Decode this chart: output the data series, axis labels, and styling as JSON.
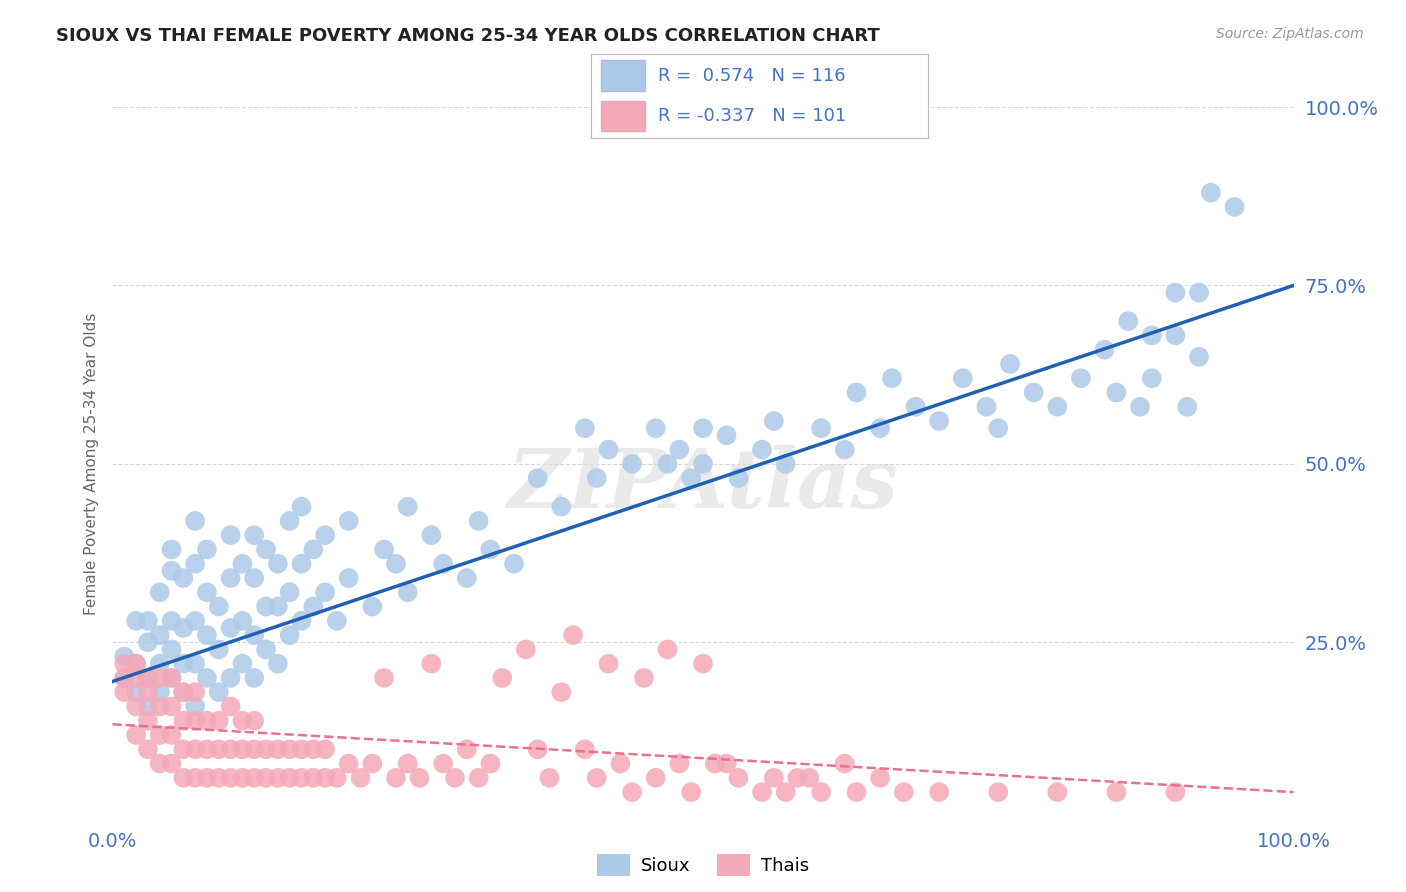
{
  "title": "SIOUX VS THAI FEMALE POVERTY AMONG 25-34 YEAR OLDS CORRELATION CHART",
  "source_text": "Source: ZipAtlas.com",
  "ylabel": "Female Poverty Among 25-34 Year Olds",
  "xlim": [
    0,
    1
  ],
  "ylim": [
    0,
    1
  ],
  "xtick_labels": [
    "0.0%",
    "100.0%"
  ],
  "ytick_labels": [
    "25.0%",
    "50.0%",
    "75.0%",
    "100.0%"
  ],
  "ytick_values": [
    0.25,
    0.5,
    0.75,
    1.0
  ],
  "sioux_R": 0.574,
  "sioux_N": 116,
  "thai_R": -0.337,
  "thai_N": 101,
  "sioux_color": "#adc9e8",
  "thai_color": "#f4aab8",
  "sioux_line_color": "#2060b0",
  "thai_line_color": "#e87090",
  "watermark": "ZIPAtlas",
  "background_color": "#ffffff",
  "grid_color": "#cccccc",
  "tick_color": "#4472c4",
  "title_color": "#222222",
  "ylabel_color": "#666666",
  "legend_R_color": "#4472c4",
  "legend_N_color": "#333333",
  "sioux_scatter": [
    [
      0.01,
      0.2
    ],
    [
      0.01,
      0.23
    ],
    [
      0.02,
      0.18
    ],
    [
      0.02,
      0.22
    ],
    [
      0.02,
      0.28
    ],
    [
      0.03,
      0.16
    ],
    [
      0.03,
      0.2
    ],
    [
      0.03,
      0.25
    ],
    [
      0.03,
      0.28
    ],
    [
      0.04,
      0.18
    ],
    [
      0.04,
      0.22
    ],
    [
      0.04,
      0.26
    ],
    [
      0.04,
      0.32
    ],
    [
      0.05,
      0.2
    ],
    [
      0.05,
      0.24
    ],
    [
      0.05,
      0.28
    ],
    [
      0.05,
      0.35
    ],
    [
      0.05,
      0.38
    ],
    [
      0.06,
      0.18
    ],
    [
      0.06,
      0.22
    ],
    [
      0.06,
      0.27
    ],
    [
      0.06,
      0.34
    ],
    [
      0.07,
      0.16
    ],
    [
      0.07,
      0.22
    ],
    [
      0.07,
      0.28
    ],
    [
      0.07,
      0.36
    ],
    [
      0.07,
      0.42
    ],
    [
      0.08,
      0.2
    ],
    [
      0.08,
      0.26
    ],
    [
      0.08,
      0.32
    ],
    [
      0.08,
      0.38
    ],
    [
      0.09,
      0.18
    ],
    [
      0.09,
      0.24
    ],
    [
      0.09,
      0.3
    ],
    [
      0.1,
      0.2
    ],
    [
      0.1,
      0.27
    ],
    [
      0.1,
      0.34
    ],
    [
      0.1,
      0.4
    ],
    [
      0.11,
      0.22
    ],
    [
      0.11,
      0.28
    ],
    [
      0.11,
      0.36
    ],
    [
      0.12,
      0.2
    ],
    [
      0.12,
      0.26
    ],
    [
      0.12,
      0.34
    ],
    [
      0.12,
      0.4
    ],
    [
      0.13,
      0.24
    ],
    [
      0.13,
      0.3
    ],
    [
      0.13,
      0.38
    ],
    [
      0.14,
      0.22
    ],
    [
      0.14,
      0.3
    ],
    [
      0.14,
      0.36
    ],
    [
      0.15,
      0.26
    ],
    [
      0.15,
      0.32
    ],
    [
      0.15,
      0.42
    ],
    [
      0.16,
      0.28
    ],
    [
      0.16,
      0.36
    ],
    [
      0.16,
      0.44
    ],
    [
      0.17,
      0.3
    ],
    [
      0.17,
      0.38
    ],
    [
      0.18,
      0.32
    ],
    [
      0.18,
      0.4
    ],
    [
      0.19,
      0.28
    ],
    [
      0.2,
      0.34
    ],
    [
      0.2,
      0.42
    ],
    [
      0.22,
      0.3
    ],
    [
      0.23,
      0.38
    ],
    [
      0.24,
      0.36
    ],
    [
      0.25,
      0.32
    ],
    [
      0.25,
      0.44
    ],
    [
      0.27,
      0.4
    ],
    [
      0.28,
      0.36
    ],
    [
      0.3,
      0.34
    ],
    [
      0.31,
      0.42
    ],
    [
      0.32,
      0.38
    ],
    [
      0.34,
      0.36
    ],
    [
      0.36,
      0.48
    ],
    [
      0.38,
      0.44
    ],
    [
      0.4,
      0.55
    ],
    [
      0.41,
      0.48
    ],
    [
      0.42,
      0.52
    ],
    [
      0.44,
      0.5
    ],
    [
      0.46,
      0.55
    ],
    [
      0.47,
      0.5
    ],
    [
      0.48,
      0.52
    ],
    [
      0.49,
      0.48
    ],
    [
      0.5,
      0.55
    ],
    [
      0.5,
      0.5
    ],
    [
      0.52,
      0.54
    ],
    [
      0.53,
      0.48
    ],
    [
      0.55,
      0.52
    ],
    [
      0.56,
      0.56
    ],
    [
      0.57,
      0.5
    ],
    [
      0.6,
      0.55
    ],
    [
      0.62,
      0.52
    ],
    [
      0.63,
      0.6
    ],
    [
      0.65,
      0.55
    ],
    [
      0.66,
      0.62
    ],
    [
      0.68,
      0.58
    ],
    [
      0.7,
      0.56
    ],
    [
      0.72,
      0.62
    ],
    [
      0.74,
      0.58
    ],
    [
      0.75,
      0.55
    ],
    [
      0.76,
      0.64
    ],
    [
      0.78,
      0.6
    ],
    [
      0.8,
      0.58
    ],
    [
      0.82,
      0.62
    ],
    [
      0.84,
      0.66
    ],
    [
      0.85,
      0.6
    ],
    [
      0.86,
      0.7
    ],
    [
      0.87,
      0.58
    ],
    [
      0.88,
      0.68
    ],
    [
      0.88,
      0.62
    ],
    [
      0.9,
      0.74
    ],
    [
      0.9,
      0.68
    ],
    [
      0.91,
      0.58
    ],
    [
      0.92,
      0.65
    ],
    [
      0.92,
      0.74
    ],
    [
      0.93,
      0.88
    ],
    [
      0.95,
      0.86
    ]
  ],
  "thai_scatter": [
    [
      0.01,
      0.18
    ],
    [
      0.01,
      0.2
    ],
    [
      0.01,
      0.22
    ],
    [
      0.02,
      0.12
    ],
    [
      0.02,
      0.16
    ],
    [
      0.02,
      0.2
    ],
    [
      0.02,
      0.22
    ],
    [
      0.03,
      0.1
    ],
    [
      0.03,
      0.14
    ],
    [
      0.03,
      0.18
    ],
    [
      0.03,
      0.2
    ],
    [
      0.04,
      0.08
    ],
    [
      0.04,
      0.12
    ],
    [
      0.04,
      0.16
    ],
    [
      0.04,
      0.2
    ],
    [
      0.05,
      0.08
    ],
    [
      0.05,
      0.12
    ],
    [
      0.05,
      0.16
    ],
    [
      0.05,
      0.2
    ],
    [
      0.06,
      0.06
    ],
    [
      0.06,
      0.1
    ],
    [
      0.06,
      0.14
    ],
    [
      0.06,
      0.18
    ],
    [
      0.07,
      0.06
    ],
    [
      0.07,
      0.1
    ],
    [
      0.07,
      0.14
    ],
    [
      0.07,
      0.18
    ],
    [
      0.08,
      0.06
    ],
    [
      0.08,
      0.1
    ],
    [
      0.08,
      0.14
    ],
    [
      0.09,
      0.06
    ],
    [
      0.09,
      0.1
    ],
    [
      0.09,
      0.14
    ],
    [
      0.1,
      0.06
    ],
    [
      0.1,
      0.1
    ],
    [
      0.1,
      0.16
    ],
    [
      0.11,
      0.06
    ],
    [
      0.11,
      0.1
    ],
    [
      0.11,
      0.14
    ],
    [
      0.12,
      0.06
    ],
    [
      0.12,
      0.1
    ],
    [
      0.12,
      0.14
    ],
    [
      0.13,
      0.06
    ],
    [
      0.13,
      0.1
    ],
    [
      0.14,
      0.06
    ],
    [
      0.14,
      0.1
    ],
    [
      0.15,
      0.06
    ],
    [
      0.15,
      0.1
    ],
    [
      0.16,
      0.06
    ],
    [
      0.16,
      0.1
    ],
    [
      0.17,
      0.06
    ],
    [
      0.17,
      0.1
    ],
    [
      0.18,
      0.06
    ],
    [
      0.18,
      0.1
    ],
    [
      0.19,
      0.06
    ],
    [
      0.2,
      0.08
    ],
    [
      0.21,
      0.06
    ],
    [
      0.22,
      0.08
    ],
    [
      0.23,
      0.2
    ],
    [
      0.24,
      0.06
    ],
    [
      0.25,
      0.08
    ],
    [
      0.26,
      0.06
    ],
    [
      0.27,
      0.22
    ],
    [
      0.28,
      0.08
    ],
    [
      0.29,
      0.06
    ],
    [
      0.3,
      0.1
    ],
    [
      0.31,
      0.06
    ],
    [
      0.32,
      0.08
    ],
    [
      0.33,
      0.2
    ],
    [
      0.35,
      0.24
    ],
    [
      0.36,
      0.1
    ],
    [
      0.37,
      0.06
    ],
    [
      0.38,
      0.18
    ],
    [
      0.39,
      0.26
    ],
    [
      0.4,
      0.1
    ],
    [
      0.41,
      0.06
    ],
    [
      0.42,
      0.22
    ],
    [
      0.43,
      0.08
    ],
    [
      0.44,
      0.04
    ],
    [
      0.45,
      0.2
    ],
    [
      0.46,
      0.06
    ],
    [
      0.47,
      0.24
    ],
    [
      0.48,
      0.08
    ],
    [
      0.49,
      0.04
    ],
    [
      0.5,
      0.22
    ],
    [
      0.51,
      0.08
    ],
    [
      0.52,
      0.08
    ],
    [
      0.53,
      0.06
    ],
    [
      0.55,
      0.04
    ],
    [
      0.56,
      0.06
    ],
    [
      0.57,
      0.04
    ],
    [
      0.58,
      0.06
    ],
    [
      0.59,
      0.06
    ],
    [
      0.6,
      0.04
    ],
    [
      0.62,
      0.08
    ],
    [
      0.63,
      0.04
    ],
    [
      0.65,
      0.06
    ],
    [
      0.67,
      0.04
    ],
    [
      0.7,
      0.04
    ],
    [
      0.75,
      0.04
    ],
    [
      0.8,
      0.04
    ],
    [
      0.85,
      0.04
    ],
    [
      0.9,
      0.04
    ]
  ],
  "sioux_line_x": [
    0.0,
    1.0
  ],
  "sioux_line_y": [
    0.195,
    0.75
  ],
  "thai_line_x": [
    0.0,
    1.0
  ],
  "thai_line_y": [
    0.135,
    0.04
  ]
}
